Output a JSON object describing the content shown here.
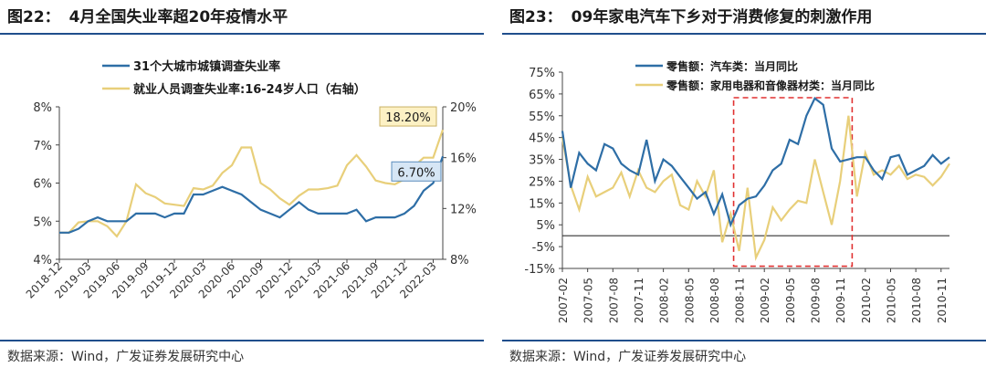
{
  "left": {
    "fig_no": "图22：",
    "title": "4月全国失业率超20年疫情水平",
    "source": "数据来源：Wind，广发证券发展研究中心"
  },
  "right": {
    "fig_no": "图23：",
    "title": "09年家电汽车下乡对于消费修复的刺激作用",
    "source": "数据来源：Wind，广发证券发展研究中心"
  },
  "chart_data": [
    {
      "type": "line",
      "title": "4月全国失业率超20年疫情水平",
      "x": [
        "2018-12",
        "2019-01",
        "2019-02",
        "2019-03",
        "2019-04",
        "2019-05",
        "2019-06",
        "2019-07",
        "2019-08",
        "2019-09",
        "2019-10",
        "2019-11",
        "2019-12",
        "2020-01",
        "2020-02",
        "2020-03",
        "2020-04",
        "2020-05",
        "2020-06",
        "2020-07",
        "2020-08",
        "2020-09",
        "2020-10",
        "2020-11",
        "2020-12",
        "2021-01",
        "2021-02",
        "2021-03",
        "2021-04",
        "2021-05",
        "2021-06",
        "2021-07",
        "2021-08",
        "2021-09",
        "2021-10",
        "2021-11",
        "2021-12",
        "2022-01",
        "2022-02",
        "2022-03",
        "2022-04"
      ],
      "x_tick_labels": [
        "2018-12",
        "2019-03",
        "2019-06",
        "2019-09",
        "2019-12",
        "2020-03",
        "2020-06",
        "2020-09",
        "2020-12",
        "2021-03",
        "2021-06",
        "2021-09",
        "2021-12",
        "2022-03"
      ],
      "series": [
        {
          "name": "31个大城市城镇调查失业率",
          "axis": "left",
          "color": "#2e6ea6",
          "values": [
            4.7,
            4.7,
            4.8,
            5.0,
            5.1,
            5.0,
            5.0,
            5.0,
            5.2,
            5.2,
            5.2,
            5.1,
            5.2,
            5.2,
            5.7,
            5.7,
            5.8,
            5.9,
            5.8,
            5.7,
            5.5,
            5.3,
            5.2,
            5.1,
            5.3,
            5.5,
            5.3,
            5.2,
            5.2,
            5.2,
            5.2,
            5.3,
            5.0,
            5.1,
            5.1,
            5.1,
            5.2,
            5.4,
            5.8,
            6.0,
            6.7
          ]
        },
        {
          "name": "就业人员调查失业率:16-24岁人口（右轴）",
          "axis": "right",
          "color": "#e8cf7a",
          "values": [
            10.1,
            10.1,
            10.9,
            11.0,
            11.0,
            10.6,
            9.8,
            11.0,
            13.9,
            13.2,
            12.9,
            12.4,
            12.3,
            12.2,
            13.6,
            13.5,
            13.8,
            14.8,
            15.4,
            16.8,
            16.8,
            14.0,
            13.5,
            12.8,
            12.3,
            13.0,
            13.5,
            13.5,
            13.6,
            13.8,
            15.4,
            16.2,
            15.3,
            14.2,
            14.0,
            13.9,
            14.3,
            15.3,
            16.0,
            16.0,
            18.2
          ]
        }
      ],
      "callouts": [
        {
          "series": "就业人员调查失业率:16-24岁人口（右轴）",
          "text": "18.20%"
        },
        {
          "series": "31个大城市城镇调查失业率",
          "text": "6.70%"
        }
      ],
      "left_axis": {
        "range": [
          4,
          8
        ],
        "ticks": [
          "4%",
          "5%",
          "6%",
          "7%",
          "8%"
        ]
      },
      "right_axis": {
        "range": [
          8,
          20
        ],
        "ticks": [
          "8%",
          "12%",
          "16%",
          "20%"
        ]
      },
      "legend_position": "top"
    },
    {
      "type": "line",
      "title": "09年家电汽车下乡对于消费修复的刺激作用",
      "x": [
        "2007-02",
        "2007-03",
        "2007-04",
        "2007-05",
        "2007-06",
        "2007-07",
        "2007-08",
        "2007-09",
        "2007-10",
        "2007-11",
        "2007-12",
        "2008-01",
        "2008-02",
        "2008-03",
        "2008-04",
        "2008-05",
        "2008-06",
        "2008-07",
        "2008-08",
        "2008-09",
        "2008-10",
        "2008-11",
        "2008-12",
        "2009-01",
        "2009-02",
        "2009-03",
        "2009-04",
        "2009-05",
        "2009-06",
        "2009-07",
        "2009-08",
        "2009-09",
        "2009-10",
        "2009-11",
        "2009-12",
        "2010-01",
        "2010-02",
        "2010-03",
        "2010-04",
        "2010-05",
        "2010-06",
        "2010-07",
        "2010-08",
        "2010-09",
        "2010-10",
        "2010-11",
        "2010-12"
      ],
      "x_tick_labels": [
        "2007-02",
        "2007-05",
        "2007-08",
        "2007-11",
        "2008-02",
        "2008-05",
        "2008-08",
        "2008-11",
        "2009-02",
        "2009-05",
        "2009-08",
        "2009-11",
        "2010-02",
        "2010-05",
        "2010-08",
        "2010-11"
      ],
      "series": [
        {
          "name": "零售额：汽车类：当月同比",
          "color": "#2e6ea6",
          "values": [
            48,
            22,
            38,
            33,
            30,
            42,
            40,
            33,
            30,
            28,
            44,
            25,
            35,
            32,
            27,
            22,
            17,
            20,
            10,
            19,
            5,
            14,
            17,
            18,
            23,
            30,
            33,
            44,
            42,
            55,
            63,
            60,
            40,
            34,
            35,
            36,
            36,
            30,
            26,
            36,
            37,
            28,
            30,
            32,
            37,
            33,
            36
          ]
        },
        {
          "name": "零售额：家用电器和音像器材类：当月同比",
          "color": "#e8cf7a",
          "values": [
            45,
            23,
            12,
            27,
            18,
            20,
            22,
            29,
            18,
            30,
            22,
            20,
            25,
            28,
            14,
            12,
            25,
            18,
            30,
            -3,
            10,
            -7,
            22,
            -10,
            -2,
            13,
            7,
            12,
            16,
            15,
            35,
            20,
            5,
            25,
            55,
            18,
            38,
            28,
            30,
            28,
            32,
            26,
            28,
            27,
            23,
            27,
            33
          ]
        }
      ],
      "y_axis": {
        "range": [
          -15,
          75
        ],
        "ticks": [
          "-15%",
          "-5%",
          "5%",
          "15%",
          "25%",
          "35%",
          "45%",
          "55%",
          "65%",
          "75%"
        ]
      },
      "highlight_box": {
        "from": "2008-11",
        "to": "2009-12"
      },
      "legend_position": "top"
    }
  ]
}
